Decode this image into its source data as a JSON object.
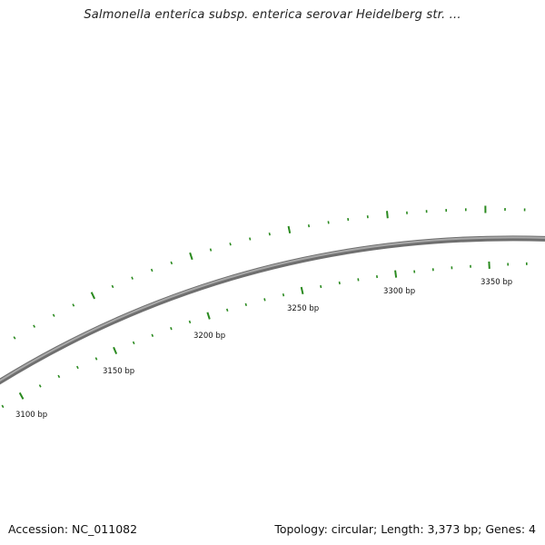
{
  "header": {
    "title": "Salmonella enterica subsp. enterica serovar Heidelberg str. ..."
  },
  "footer": {
    "accession": "Accession: NC_011082",
    "summary": "Topology: circular; Length: 3,373 bp; Genes: 4"
  },
  "map": {
    "backbone_color": "#7a7a7a",
    "tick_color": "#2a8a1f",
    "label_color": "#111111",
    "position_labels": [
      "3100 bp",
      "3150 bp",
      "3200 bp",
      "3250 bp",
      "3300 bp",
      "3350 bp"
    ],
    "position_values": [
      3100,
      3150,
      3200,
      3250,
      3300,
      3350
    ],
    "ruler_step_bp": 10,
    "visible_range_bp": [
      3088,
      3373
    ]
  }
}
